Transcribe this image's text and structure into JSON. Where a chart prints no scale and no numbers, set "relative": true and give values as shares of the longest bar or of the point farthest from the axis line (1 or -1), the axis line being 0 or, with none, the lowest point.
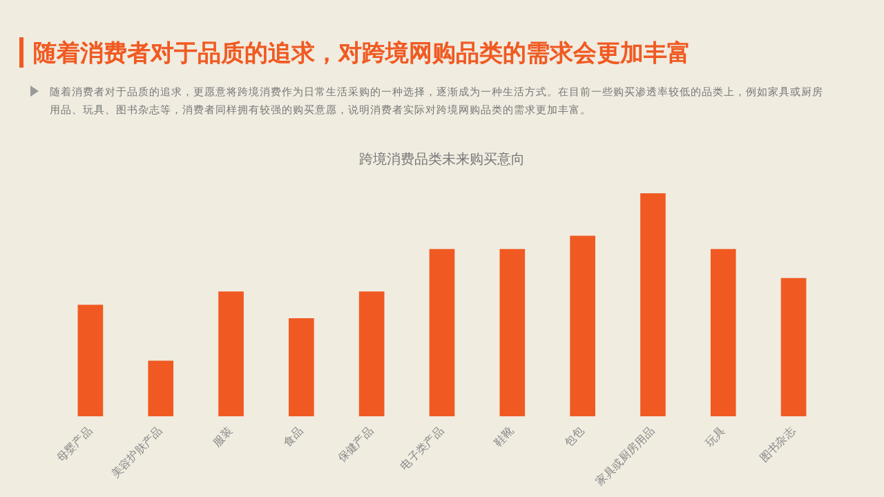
{
  "chart_data": {
    "type": "bar",
    "title": "跨境消费品类未来购买意向",
    "subtitle": "随着消费者对于品质的追求，对跨境网购品类的需求会更加丰富",
    "annotations": [
      "随着消费者对于品质的追求，更愿意将跨境消费作为日常生活采购的一种选择，逐渐成为一种生活方式。在目前一些购买渗透率较低的品类上，例如家具或厨房用品、玩具、图书杂志等，消费者同样拥有较强的购买意愿，说明消费者实际对跨境网购品类的需求更加丰富。"
    ],
    "categories": [
      "母婴产品",
      "美容护肤产品",
      "服装",
      "食品",
      "保健产品",
      "电子类产品",
      "鞋靴",
      "包包",
      "家具或厨房用品",
      "玩具",
      "图书杂志"
    ],
    "values": [
      0.5,
      0.25,
      0.56,
      0.44,
      0.56,
      0.75,
      0.75,
      0.81,
      1,
      0.75,
      0.62
    ],
    "color": "#f05a22",
    "relative": true,
    "grid": false,
    "legend": false
  }
}
